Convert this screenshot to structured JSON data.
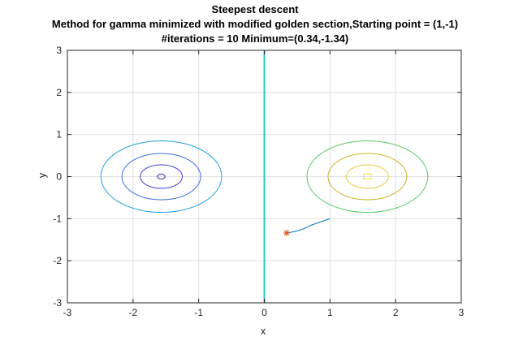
{
  "chart_data": {
    "type": "line",
    "title_lines": [
      "Steepest descent",
      "Method for gamma minimized with modified golden section,Starting point = (1,-1)",
      "#iterations = 10 Minimum=(0.34,-1.34)"
    ],
    "xlabel": "x",
    "ylabel": "y",
    "xlim": [
      -3,
      3
    ],
    "ylim": [
      -3,
      3
    ],
    "xticks": [
      -3,
      -2,
      -1,
      0,
      1,
      2,
      3
    ],
    "yticks": [
      -3,
      -2,
      -1,
      0,
      1,
      2,
      3
    ],
    "grid": true,
    "contours": [
      {
        "center": [
          -1.57,
          0
        ],
        "rx": 0.06,
        "ry": 0.06,
        "color": "#3d26a8",
        "shape": "octagon"
      },
      {
        "center": [
          -1.57,
          0
        ],
        "rx": 0.32,
        "ry": 0.28,
        "color": "#4340d6",
        "shape": "ellipse"
      },
      {
        "center": [
          -1.57,
          0
        ],
        "rx": 0.6,
        "ry": 0.55,
        "color": "#3a6ee6",
        "shape": "ellipse"
      },
      {
        "center": [
          -1.57,
          0
        ],
        "rx": 0.92,
        "ry": 0.85,
        "color": "#1ea0e0",
        "shape": "ellipse"
      },
      {
        "center": [
          1.57,
          0
        ],
        "rx": 0.92,
        "ry": 0.85,
        "color": "#5cc864",
        "shape": "ellipse"
      },
      {
        "center": [
          1.57,
          0
        ],
        "rx": 0.6,
        "ry": 0.55,
        "color": "#c8b42c",
        "shape": "ellipse"
      },
      {
        "center": [
          1.57,
          0
        ],
        "rx": 0.32,
        "ry": 0.28,
        "color": "#e8c83a",
        "shape": "ellipse"
      },
      {
        "center": [
          1.57,
          0
        ],
        "rx": 0.06,
        "ry": 0.06,
        "color": "#f8e818",
        "shape": "square"
      }
    ],
    "vertical_lines": [
      {
        "x": 0,
        "color": "#27c6c6"
      }
    ],
    "path": {
      "color": "#0072bd",
      "points": [
        [
          1.0,
          -1.0
        ],
        [
          0.85,
          -1.08
        ],
        [
          0.72,
          -1.15
        ],
        [
          0.6,
          -1.24
        ],
        [
          0.48,
          -1.3
        ],
        [
          0.42,
          -1.32
        ],
        [
          0.38,
          -1.33
        ],
        [
          0.36,
          -1.335
        ],
        [
          0.35,
          -1.338
        ],
        [
          0.345,
          -1.339
        ],
        [
          0.34,
          -1.34
        ]
      ]
    },
    "minimum_marker": {
      "x": 0.34,
      "y": -1.34,
      "color": "#d95319",
      "symbol": "asterisk"
    }
  }
}
